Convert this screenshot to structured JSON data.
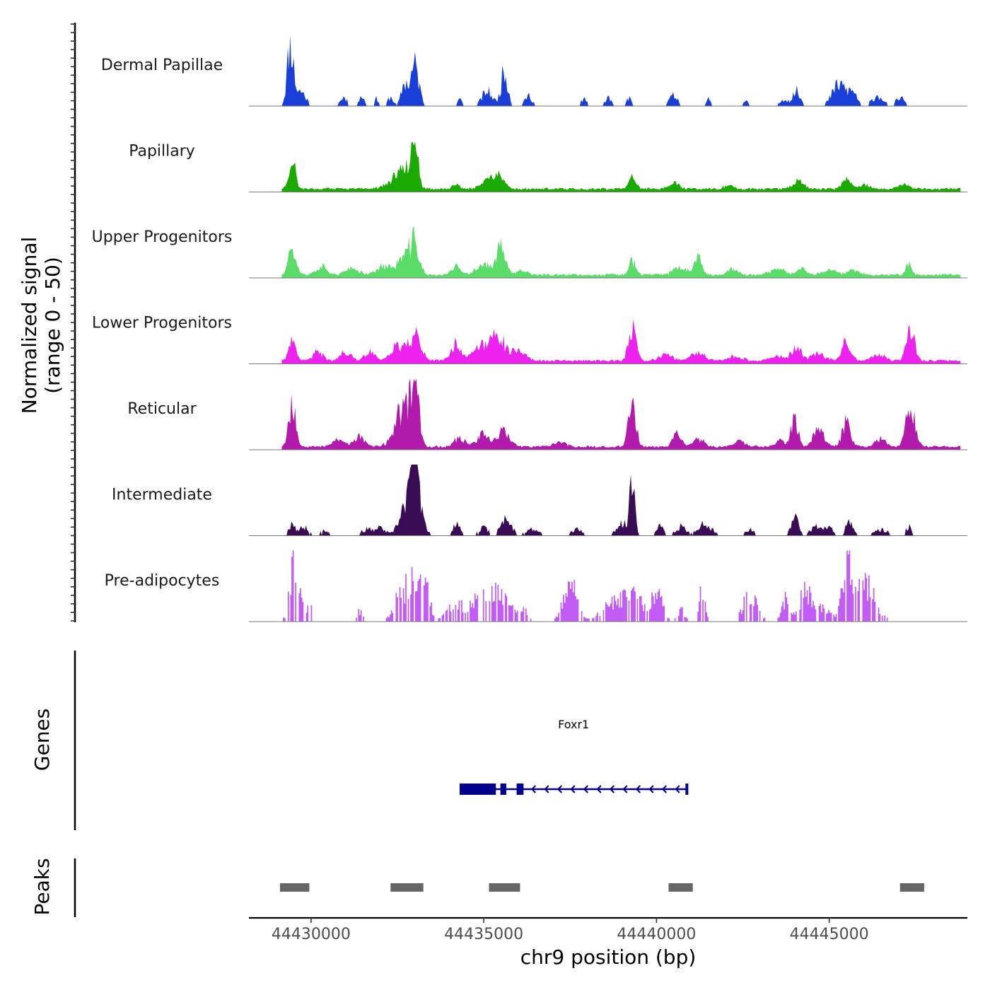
{
  "chart_data": {
    "type": "area",
    "title": "",
    "ylabel_line1": "Normalized signal",
    "ylabel_line2": "(range 0 - 50)",
    "xlabel": "chr9 position (bp)",
    "xlim": [
      44428200,
      44449000
    ],
    "x_ticks": [
      44430000,
      44435000,
      44440000,
      44445000
    ],
    "x_tick_labels": [
      "44430000",
      "44435000",
      "44440000",
      "44445000"
    ],
    "ylim": [
      0,
      50
    ],
    "region": [
      44429150,
      44448800
    ],
    "tracks": [
      {
        "name": "Dermal Papillae",
        "color": "#1a3fd9",
        "sparse": true,
        "seed": 11,
        "peaks": [
          [
            44429400,
            44,
            90
          ],
          [
            44429700,
            10,
            140
          ],
          [
            44430950,
            6,
            100
          ],
          [
            44431450,
            7,
            80
          ],
          [
            44431900,
            5,
            60
          ],
          [
            44432300,
            6,
            80
          ],
          [
            44432700,
            15,
            90
          ],
          [
            44433000,
            28,
            120
          ],
          [
            44434300,
            5,
            60
          ],
          [
            44435100,
            10,
            150
          ],
          [
            44435600,
            24,
            100
          ],
          [
            44436300,
            7,
            100
          ],
          [
            44437900,
            5,
            80
          ],
          [
            44438600,
            5,
            90
          ],
          [
            44439200,
            5,
            80
          ],
          [
            44440500,
            7,
            130
          ],
          [
            44441500,
            5,
            60
          ],
          [
            44442600,
            3,
            80
          ],
          [
            44443700,
            5,
            100
          ],
          [
            44444050,
            10,
            110
          ],
          [
            44445300,
            15,
            200
          ],
          [
            44445700,
            8,
            120
          ],
          [
            44446400,
            7,
            160
          ],
          [
            44447050,
            6,
            110
          ]
        ]
      },
      {
        "name": "Papillary",
        "color": "#1aaa00",
        "sparse": false,
        "seed": 23,
        "peaks": [
          [
            44429450,
            22,
            90
          ],
          [
            44432700,
            14,
            160
          ],
          [
            44433000,
            38,
            90
          ],
          [
            44432500,
            6,
            300
          ],
          [
            44434200,
            4,
            90
          ],
          [
            44435400,
            10,
            170
          ],
          [
            44435050,
            6,
            150
          ],
          [
            44439300,
            8,
            100
          ],
          [
            44440500,
            4,
            150
          ],
          [
            44442100,
            3,
            120
          ],
          [
            44444100,
            5,
            150
          ],
          [
            44445500,
            7,
            110
          ],
          [
            44446000,
            3,
            180
          ],
          [
            44447150,
            3,
            150
          ]
        ]
      },
      {
        "name": "Upper Progenitors",
        "color": "#5adc68",
        "sparse": false,
        "seed": 37,
        "peaks": [
          [
            44429450,
            20,
            110
          ],
          [
            44430300,
            6,
            150
          ],
          [
            44431200,
            4,
            200
          ],
          [
            44432100,
            6,
            200
          ],
          [
            44432700,
            12,
            200
          ],
          [
            44433000,
            20,
            130
          ],
          [
            44434200,
            6,
            120
          ],
          [
            44435000,
            8,
            200
          ],
          [
            44435500,
            20,
            120
          ],
          [
            44436100,
            3,
            150
          ],
          [
            44439300,
            10,
            100
          ],
          [
            44440700,
            5,
            200
          ],
          [
            44441200,
            12,
            100
          ],
          [
            44442200,
            4,
            150
          ],
          [
            44443500,
            4,
            200
          ],
          [
            44444200,
            4,
            150
          ],
          [
            44445000,
            3,
            200
          ],
          [
            44445700,
            3,
            150
          ],
          [
            44447300,
            8,
            80
          ]
        ]
      },
      {
        "name": "Lower Progenitors",
        "color": "#ee22ee",
        "sparse": false,
        "seed": 41,
        "peaks": [
          [
            44429450,
            12,
            110
          ],
          [
            44430200,
            6,
            150
          ],
          [
            44431000,
            6,
            150
          ],
          [
            44431700,
            6,
            150
          ],
          [
            44432500,
            10,
            200
          ],
          [
            44433000,
            18,
            180
          ],
          [
            44434200,
            12,
            150
          ],
          [
            44434900,
            10,
            200
          ],
          [
            44435400,
            20,
            180
          ],
          [
            44436000,
            8,
            200
          ],
          [
            44439300,
            22,
            110
          ],
          [
            44440300,
            4,
            200
          ],
          [
            44441200,
            5,
            200
          ],
          [
            44442300,
            3,
            200
          ],
          [
            44443500,
            3,
            200
          ],
          [
            44444050,
            8,
            150
          ],
          [
            44444700,
            5,
            200
          ],
          [
            44445500,
            16,
            120
          ],
          [
            44446400,
            4,
            200
          ],
          [
            44447350,
            24,
            110
          ]
        ]
      },
      {
        "name": "Reticular",
        "color": "#b21aab",
        "sparse": false,
        "seed": 53,
        "peaks": [
          [
            44429450,
            30,
            100
          ],
          [
            44430800,
            6,
            150
          ],
          [
            44431400,
            7,
            150
          ],
          [
            44432500,
            10,
            200
          ],
          [
            44433000,
            55,
            110
          ],
          [
            44432700,
            18,
            180
          ],
          [
            44434300,
            6,
            150
          ],
          [
            44435000,
            9,
            200
          ],
          [
            44435600,
            12,
            150
          ],
          [
            44437200,
            4,
            150
          ],
          [
            44439300,
            35,
            100
          ],
          [
            44440600,
            10,
            120
          ],
          [
            44441200,
            6,
            150
          ],
          [
            44442400,
            4,
            150
          ],
          [
            44443600,
            4,
            150
          ],
          [
            44444000,
            20,
            100
          ],
          [
            44444700,
            12,
            150
          ],
          [
            44445500,
            18,
            120
          ],
          [
            44446500,
            6,
            150
          ],
          [
            44447350,
            31,
            130
          ]
        ]
      },
      {
        "name": "Intermediate",
        "color": "#3b0c56",
        "sparse": true,
        "seed": 67,
        "peaks": [
          [
            44429450,
            9,
            90
          ],
          [
            44429800,
            6,
            120
          ],
          [
            44430400,
            4,
            120
          ],
          [
            44431600,
            4,
            150
          ],
          [
            44432000,
            5,
            150
          ],
          [
            44432700,
            14,
            170
          ],
          [
            44433000,
            56,
            80
          ],
          [
            44433000,
            25,
            200
          ],
          [
            44434200,
            9,
            100
          ],
          [
            44435000,
            5,
            150
          ],
          [
            44435650,
            12,
            150
          ],
          [
            44436400,
            4,
            200
          ],
          [
            44437700,
            4,
            150
          ],
          [
            44439000,
            8,
            150
          ],
          [
            44439300,
            36,
            80
          ],
          [
            44440100,
            6,
            100
          ],
          [
            44440700,
            6,
            150
          ],
          [
            44441400,
            8,
            200
          ],
          [
            44442700,
            4,
            150
          ],
          [
            44444000,
            13,
            100
          ],
          [
            44444600,
            6,
            150
          ],
          [
            44445000,
            7,
            120
          ],
          [
            44445600,
            12,
            100
          ],
          [
            44446500,
            4,
            200
          ],
          [
            44447300,
            6,
            80
          ]
        ]
      },
      {
        "name": "Pre-adipocytes",
        "color": "#c25cf5",
        "sparse": true,
        "bars": true,
        "seed": 79,
        "peaks": [
          [
            44429450,
            35,
            110
          ],
          [
            44429700,
            15,
            120
          ],
          [
            44430000,
            8,
            100
          ],
          [
            44431400,
            8,
            80
          ],
          [
            44432500,
            15,
            160
          ],
          [
            44432900,
            30,
            180
          ],
          [
            44433300,
            25,
            120
          ],
          [
            44434200,
            12,
            250
          ],
          [
            44434800,
            12,
            200
          ],
          [
            44435400,
            20,
            300
          ],
          [
            44436100,
            8,
            150
          ],
          [
            44437500,
            25,
            200
          ],
          [
            44438700,
            12,
            300
          ],
          [
            44439300,
            20,
            250
          ],
          [
            44440000,
            22,
            150
          ],
          [
            44440700,
            8,
            100
          ],
          [
            44441300,
            20,
            80
          ],
          [
            44442700,
            18,
            200
          ],
          [
            44443700,
            15,
            100
          ],
          [
            44444300,
            20,
            200
          ],
          [
            44444800,
            8,
            200
          ],
          [
            44445500,
            35,
            150
          ],
          [
            44446000,
            25,
            300
          ]
        ]
      }
    ],
    "genes": {
      "track_label": "Genes",
      "name": "Foxr1",
      "strand": "-",
      "start": 44434300,
      "end": 44440900,
      "color": "#00008b",
      "exons": [
        [
          44434300,
          44435350
        ],
        [
          44435480,
          44435650
        ],
        [
          44435950,
          44436150
        ]
      ]
    },
    "peaks_track": {
      "track_label": "Peaks",
      "color": "#666666",
      "regions": [
        [
          44429100,
          44429950
        ],
        [
          44432300,
          44433250
        ],
        [
          44435150,
          44436050
        ],
        [
          44440350,
          44441050
        ],
        [
          44447050,
          44447750
        ]
      ]
    }
  }
}
